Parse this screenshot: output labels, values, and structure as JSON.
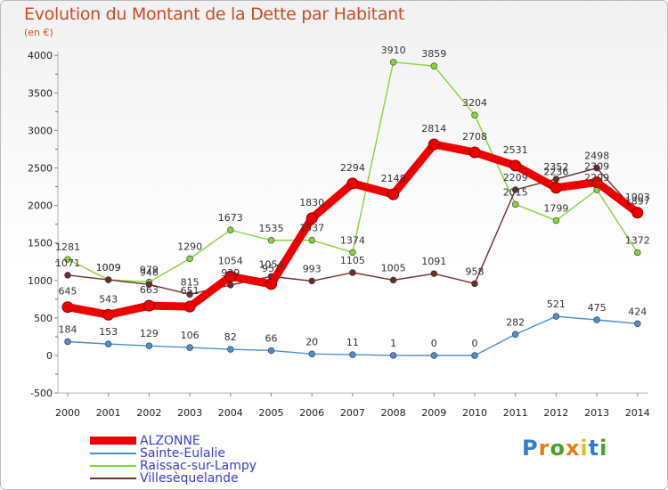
{
  "title": "Evolution du Montant de la Dette par Habitant",
  "unit_label": "(en €)",
  "logo": {
    "letters": [
      "P",
      "r",
      "o",
      "x",
      "i",
      "t",
      "i"
    ],
    "colors": [
      "#2e7fd0",
      "#e87e1a",
      "#4aa02c",
      "#e87e1a",
      "#d9c21a",
      "#2e7fd0",
      "#4aa02c"
    ]
  },
  "chart_data": {
    "type": "line",
    "title": "Evolution du Montant de la Dette par Habitant",
    "ylabel": "(en €)",
    "x": [
      "2000",
      "2001",
      "2002",
      "2003",
      "2004",
      "2005",
      "2006",
      "2007",
      "2008",
      "2009",
      "2010",
      "2011",
      "2012",
      "2013",
      "2014"
    ],
    "y_ticks": [
      "-500",
      "0",
      "500",
      "1000",
      "1500",
      "2000",
      "2500",
      "3000",
      "3500",
      "4000"
    ],
    "ylim": [
      -500,
      4000
    ],
    "grid": false,
    "legend_position": "bottom-left",
    "series": [
      {
        "name": "ALZONNE",
        "color": "#ee0000",
        "values": [
          645,
          543,
          663,
          651,
          1054,
          951,
          1830,
          2294,
          2148,
          2814,
          2708,
          2531,
          2236,
          2309,
          1903
        ]
      },
      {
        "name": "Sainte-Eulalie",
        "color": "#4d8fcf",
        "values": [
          184,
          153,
          129,
          106,
          82,
          66,
          20,
          11,
          1,
          0,
          0,
          282,
          521,
          475,
          424
        ]
      },
      {
        "name": "Raissac-sur-Lampy",
        "color": "#86d43a",
        "values": [
          1281,
          1009,
          979,
          1290,
          1673,
          1535,
          1537,
          1374,
          3910,
          3859,
          3204,
          2015,
          1799,
          2209,
          1372
        ]
      },
      {
        "name": "Villesèquelande",
        "color": "#6e2e2e",
        "values": [
          1071,
          1009,
          946,
          815,
          939,
          1054,
          993,
          1105,
          1005,
          1091,
          958,
          2209,
          2352,
          2498,
          1897
        ]
      }
    ]
  }
}
